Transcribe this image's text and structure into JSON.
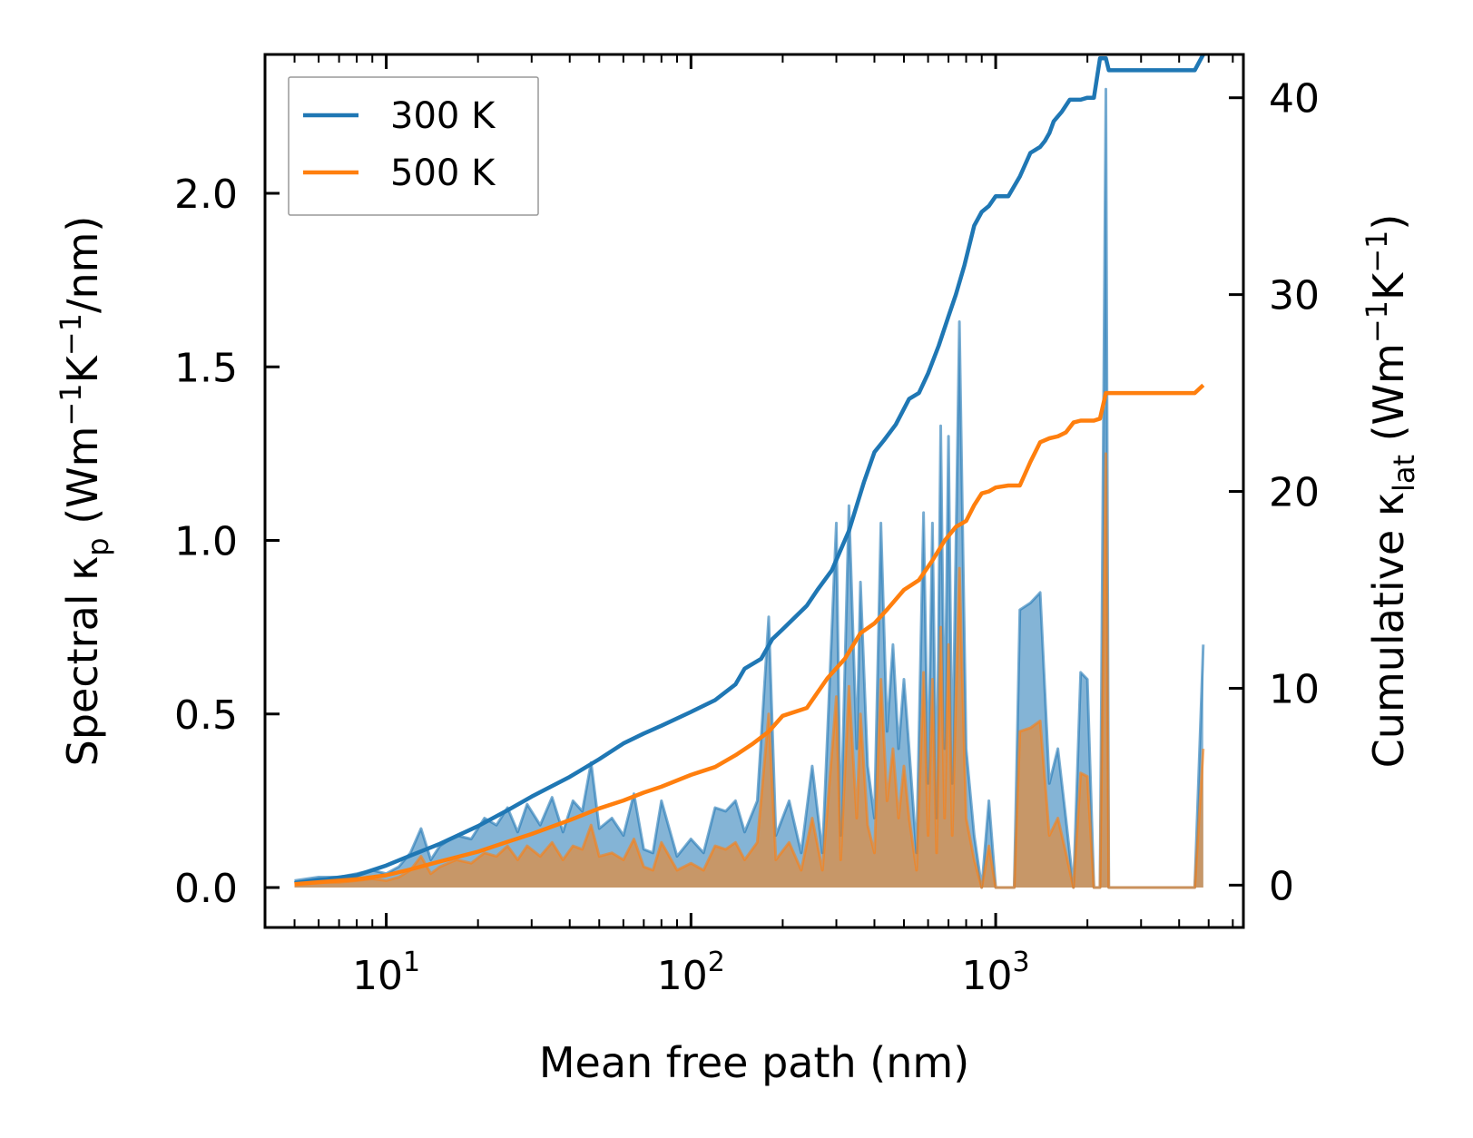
{
  "colors": {
    "series_300": "#1f77b4",
    "series_500": "#ff7f0e",
    "axis": "#000000",
    "legend_border": "#999999"
  },
  "chart_data": {
    "type": "line",
    "xscale": "log",
    "xlim": [
      4,
      6500
    ],
    "xlabel": "Mean free path (nm)",
    "xticks": [
      {
        "value": 10,
        "base": "10",
        "exp": "1"
      },
      {
        "value": 100,
        "base": "10",
        "exp": "2"
      },
      {
        "value": 1000,
        "base": "10",
        "exp": "3"
      }
    ],
    "y_left": {
      "label_main": "Spectral κ",
      "label_sub": "p",
      "label_units_a": " (Wm",
      "label_units_b": "K",
      "label_units_c": "/nm)",
      "label_sup": "−1",
      "lim": [
        -0.115,
        2.4
      ],
      "ticks": [
        0.0,
        0.5,
        1.0,
        1.5,
        2.0
      ],
      "tick_labels": [
        "0.0",
        "0.5",
        "1.0",
        "1.5",
        "2.0"
      ]
    },
    "y_right": {
      "label_main": "Cumulative κ",
      "label_sub": "lat",
      "label_units_a": " (Wm",
      "label_units_b": "K",
      "label_units_c": ")",
      "label_sup": "−1",
      "lim": [
        -2.15,
        42.2
      ],
      "ticks": [
        0,
        10,
        20,
        30,
        40
      ],
      "tick_labels": [
        "0",
        "10",
        "20",
        "30",
        "40"
      ]
    },
    "legend": {
      "position": "top-left",
      "entries": [
        "300 K",
        "500 K"
      ]
    },
    "series": [
      {
        "name": "300 K",
        "axis": "left",
        "style": "filled-area",
        "x": [
          5,
          6,
          7,
          8,
          9,
          10,
          11,
          12,
          13,
          14,
          15,
          17,
          19,
          21,
          23,
          25,
          27,
          29,
          32,
          35,
          38,
          41,
          44,
          47,
          50,
          55,
          60,
          65,
          70,
          75,
          80,
          90,
          100,
          110,
          120,
          130,
          140,
          150,
          165,
          180,
          190,
          210,
          230,
          250,
          270,
          300,
          310,
          330,
          350,
          360,
          380,
          400,
          420,
          440,
          460,
          480,
          500,
          520,
          550,
          580,
          600,
          620,
          640,
          660,
          680,
          700,
          720,
          760,
          800,
          850,
          900,
          950,
          1000,
          1050,
          1100,
          1150,
          1200,
          1300,
          1400,
          1500,
          1600,
          1700,
          1800,
          1900,
          2000,
          2100,
          2200,
          2300,
          2350,
          2450,
          3000,
          4500,
          4800
        ],
        "values": [
          0.02,
          0.03,
          0.03,
          0.04,
          0.05,
          0.04,
          0.06,
          0.1,
          0.17,
          0.08,
          0.12,
          0.15,
          0.14,
          0.2,
          0.18,
          0.23,
          0.16,
          0.24,
          0.18,
          0.26,
          0.16,
          0.25,
          0.22,
          0.36,
          0.17,
          0.2,
          0.15,
          0.27,
          0.11,
          0.1,
          0.25,
          0.09,
          0.14,
          0.1,
          0.23,
          0.22,
          0.25,
          0.16,
          0.25,
          0.78,
          0.15,
          0.25,
          0.1,
          0.35,
          0.1,
          1.05,
          0.15,
          1.1,
          0.4,
          0.88,
          0.35,
          0.2,
          1.05,
          0.45,
          0.7,
          0.4,
          0.6,
          0.4,
          0.1,
          1.08,
          0.3,
          1.05,
          0.2,
          1.33,
          0.4,
          1.3,
          0.3,
          1.63,
          0.4,
          0.15,
          0.0,
          0.25,
          0.0,
          0.0,
          0.0,
          0.0,
          0.8,
          0.82,
          0.85,
          0.3,
          0.4,
          0.2,
          0.0,
          0.62,
          0.6,
          0.0,
          0.0,
          2.3,
          0.0,
          0.0,
          0.0,
          0.0,
          0.7
        ]
      },
      {
        "name": "500 K",
        "axis": "left",
        "style": "filled-area",
        "x": [
          5,
          6,
          7,
          8,
          9,
          10,
          11,
          12,
          13,
          14,
          15,
          17,
          19,
          21,
          23,
          25,
          27,
          29,
          32,
          35,
          38,
          41,
          44,
          47,
          50,
          55,
          60,
          65,
          70,
          75,
          80,
          90,
          100,
          110,
          120,
          130,
          140,
          150,
          165,
          180,
          190,
          210,
          230,
          250,
          270,
          300,
          310,
          330,
          350,
          360,
          380,
          400,
          420,
          440,
          460,
          480,
          500,
          520,
          550,
          580,
          600,
          620,
          640,
          660,
          680,
          700,
          720,
          760,
          800,
          850,
          900,
          950,
          1000,
          1050,
          1100,
          1150,
          1200,
          1300,
          1400,
          1500,
          1600,
          1700,
          1800,
          1900,
          2000,
          2100,
          2200,
          2300,
          2350,
          2450,
          3000,
          4500,
          4800
        ],
        "values": [
          0.01,
          0.015,
          0.015,
          0.02,
          0.025,
          0.02,
          0.03,
          0.05,
          0.09,
          0.04,
          0.06,
          0.08,
          0.07,
          0.1,
          0.09,
          0.12,
          0.08,
          0.12,
          0.09,
          0.13,
          0.08,
          0.12,
          0.11,
          0.18,
          0.09,
          0.1,
          0.08,
          0.14,
          0.06,
          0.05,
          0.13,
          0.05,
          0.07,
          0.05,
          0.12,
          0.11,
          0.13,
          0.08,
          0.13,
          0.5,
          0.08,
          0.13,
          0.05,
          0.2,
          0.05,
          0.55,
          0.08,
          0.58,
          0.2,
          0.5,
          0.18,
          0.1,
          0.6,
          0.25,
          0.4,
          0.2,
          0.35,
          0.2,
          0.05,
          0.62,
          0.15,
          0.6,
          0.1,
          0.75,
          0.2,
          0.7,
          0.15,
          0.92,
          0.2,
          0.08,
          0.0,
          0.12,
          0.0,
          0.0,
          0.0,
          0.0,
          0.45,
          0.46,
          0.48,
          0.15,
          0.2,
          0.1,
          0.0,
          0.33,
          0.32,
          0.0,
          0.0,
          1.25,
          0.0,
          0.0,
          0.0,
          0.0,
          0.4
        ]
      },
      {
        "name": "300 K",
        "axis": "right",
        "style": "line",
        "x": [
          5,
          8,
          10,
          12,
          15,
          20,
          25,
          30,
          40,
          50,
          60,
          70,
          80,
          100,
          120,
          140,
          150,
          170,
          185,
          200,
          240,
          260,
          290,
          330,
          370,
          400,
          430,
          470,
          520,
          560,
          600,
          650,
          700,
          740,
          790,
          850,
          900,
          950,
          1000,
          1100,
          1200,
          1300,
          1400,
          1450,
          1500,
          1550,
          1650,
          1750,
          1900,
          2000,
          2100,
          2200,
          2300,
          2350,
          4500,
          4800
        ],
        "values": [
          0.1,
          0.5,
          1.0,
          1.5,
          2.1,
          3.0,
          3.8,
          4.5,
          5.5,
          6.4,
          7.2,
          7.7,
          8.1,
          8.8,
          9.4,
          10.2,
          11.0,
          11.5,
          12.5,
          13.0,
          14.2,
          15.0,
          16.0,
          18.0,
          20.5,
          22.0,
          22.6,
          23.4,
          24.7,
          25.0,
          26.0,
          27.4,
          28.9,
          30.0,
          31.5,
          33.5,
          34.2,
          34.5,
          35.0,
          35.0,
          36.0,
          37.2,
          37.5,
          37.8,
          38.2,
          38.8,
          39.3,
          39.9,
          39.9,
          40.0,
          40.0,
          42.0,
          42.0,
          41.4,
          41.4,
          42.2
        ]
      },
      {
        "name": "500 K",
        "axis": "right",
        "style": "line",
        "x": [
          5,
          8,
          10,
          12,
          15,
          20,
          25,
          30,
          40,
          50,
          60,
          70,
          80,
          100,
          120,
          140,
          160,
          180,
          200,
          240,
          280,
          320,
          360,
          400,
          440,
          500,
          560,
          620,
          680,
          740,
          800,
          850,
          900,
          950,
          1000,
          1100,
          1200,
          1300,
          1400,
          1500,
          1600,
          1700,
          1800,
          1900,
          2000,
          2100,
          2200,
          2300,
          2350,
          4500,
          4800
        ],
        "values": [
          0.05,
          0.3,
          0.5,
          0.8,
          1.2,
          1.7,
          2.2,
          2.6,
          3.3,
          3.9,
          4.3,
          4.7,
          5.0,
          5.6,
          6.0,
          6.6,
          7.2,
          7.8,
          8.6,
          9.0,
          10.5,
          11.5,
          12.8,
          13.3,
          14.0,
          15.0,
          15.5,
          16.5,
          17.5,
          18.2,
          18.5,
          19.3,
          19.9,
          20.0,
          20.2,
          20.3,
          20.3,
          21.5,
          22.5,
          22.7,
          22.8,
          23.0,
          23.5,
          23.6,
          23.6,
          23.6,
          23.7,
          25.0,
          25.0,
          25.0,
          25.4
        ]
      }
    ]
  }
}
